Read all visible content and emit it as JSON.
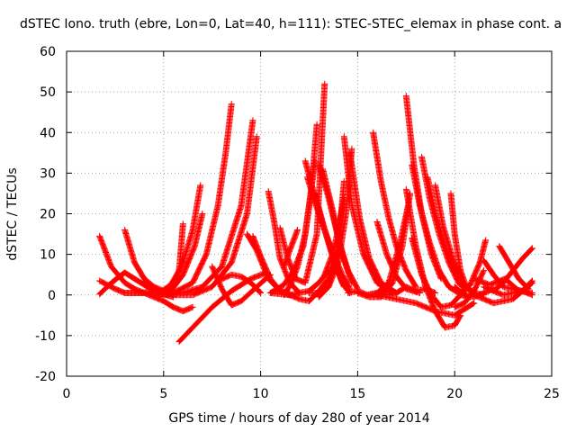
{
  "chart_data": {
    "type": "scatter",
    "title": "dSTEC Iono. truth (ebre, Lon=0, Lat=40, h=111): STEC-STEC_elemax in phase cont. a",
    "xlabel": "GPS time / hours of day 280 of year 2014",
    "ylabel": "dSTEC  / TECUs",
    "xlim": [
      0,
      25
    ],
    "ylim": [
      -20,
      60
    ],
    "xticks": [
      0,
      5,
      10,
      15,
      20,
      25
    ],
    "yticks": [
      -20,
      -10,
      0,
      10,
      20,
      30,
      40,
      50,
      60
    ],
    "grid": true,
    "marker": "+",
    "color": "#ff0000",
    "series": [
      {
        "x": [
          1.7,
          2.3,
          3.0,
          3.5,
          4.0,
          4.5
        ],
        "y": [
          14.5,
          7.0,
          3.0,
          1.5,
          0.5,
          0.0
        ]
      },
      {
        "x": [
          1.7,
          2.5,
          3.0,
          3.8,
          4.5,
          5.0,
          5.5
        ],
        "y": [
          3.5,
          1.5,
          0.5,
          0.5,
          0.8,
          0.2,
          -0.5
        ]
      },
      {
        "x": [
          1.7,
          2.2,
          2.7,
          3.0,
          3.5,
          4.0,
          4.5
        ],
        "y": [
          0.2,
          2.5,
          4.5,
          5.5,
          4.0,
          2.5,
          1.0
        ]
      },
      {
        "x": [
          3.0,
          3.5,
          4.0,
          4.5,
          5.0,
          5.3
        ],
        "y": [
          16.0,
          8.0,
          4.0,
          2.0,
          1.0,
          0.5
        ]
      },
      {
        "x": [
          3.0,
          4.0,
          5.0,
          5.5,
          6.0,
          6.5
        ],
        "y": [
          0.5,
          0.5,
          -1.5,
          -3.0,
          -4.0,
          -3.0
        ]
      },
      {
        "x": [
          4.0,
          4.8,
          5.2,
          5.8,
          6.0
        ],
        "y": [
          3.5,
          0.0,
          1.0,
          6.0,
          17.5
        ]
      },
      {
        "x": [
          4.8,
          5.5,
          6.0,
          6.5,
          6.9
        ],
        "y": [
          0.5,
          3.0,
          8.0,
          16.0,
          27.0
        ]
      },
      {
        "x": [
          5.3,
          6.0,
          6.6,
          7.0
        ],
        "y": [
          0.5,
          5.0,
          12.0,
          20.0
        ]
      },
      {
        "x": [
          5.8,
          6.5,
          7.5,
          8.5,
          9.5,
          10.3
        ],
        "y": [
          -11.5,
          -8.0,
          -3.0,
          1.0,
          4.0,
          5.5
        ]
      },
      {
        "x": [
          4.5,
          5.5,
          6.5,
          7.2,
          7.8,
          8.2,
          8.5
        ],
        "y": [
          0.0,
          0.5,
          3.0,
          10.0,
          22.0,
          35.0,
          47.0
        ]
      },
      {
        "x": [
          5.0,
          6.0,
          7.0,
          8.0,
          9.0,
          9.6
        ],
        "y": [
          0.0,
          0.5,
          2.0,
          7.0,
          22.0,
          43.0
        ]
      },
      {
        "x": [
          5.5,
          6.5,
          7.5,
          8.5,
          9.3,
          9.8
        ],
        "y": [
          0.0,
          0.0,
          2.0,
          8.0,
          20.0,
          39.0
        ]
      },
      {
        "x": [
          7.5,
          8.0,
          8.5,
          9.0,
          9.8,
          10.5
        ],
        "y": [
          7.0,
          1.5,
          -2.5,
          -1.5,
          2.0,
          5.0
        ]
      },
      {
        "x": [
          7.8,
          8.5,
          9.0,
          9.5,
          10.0
        ],
        "y": [
          3.5,
          5.0,
          4.5,
          3.0,
          0.5
        ]
      },
      {
        "x": [
          9.3,
          9.8,
          10.4,
          11.0,
          11.5
        ],
        "y": [
          15.0,
          11.0,
          4.0,
          1.0,
          0.5
        ]
      },
      {
        "x": [
          9.6,
          10.0,
          10.5,
          11.0
        ],
        "y": [
          14.5,
          9.5,
          4.0,
          1.0
        ]
      },
      {
        "x": [
          10.4,
          10.7,
          11.0,
          11.5,
          12.0
        ],
        "y": [
          25.5,
          18.0,
          9.0,
          3.0,
          0.5
        ]
      },
      {
        "x": [
          11.0,
          11.4,
          11.8,
          12.3,
          12.9,
          13.3
        ],
        "y": [
          16.5,
          9.0,
          4.0,
          3.0,
          15.0,
          52.0
        ]
      },
      {
        "x": [
          10.5,
          11.2,
          11.7,
          12.2,
          12.6,
          12.9
        ],
        "y": [
          0.5,
          2.5,
          6.0,
          12.0,
          25.0,
          42.0
        ]
      },
      {
        "x": [
          11.2,
          11.6,
          11.9,
          12.3,
          12.8
        ],
        "y": [
          0.0,
          3.0,
          7.0,
          15.0,
          33.0
        ]
      },
      {
        "x": [
          11.2,
          11.5,
          11.9
        ],
        "y": [
          7.0,
          11.0,
          16.0
        ]
      },
      {
        "x": [
          10.5,
          11.5,
          12.5,
          13.0,
          13.5
        ],
        "y": [
          0.5,
          0.0,
          1.0,
          3.0,
          6.0
        ]
      },
      {
        "x": [
          12.3,
          12.8,
          13.3,
          13.8,
          14.3
        ],
        "y": [
          33.0,
          24.0,
          16.0,
          8.0,
          2.0
        ]
      },
      {
        "x": [
          12.4,
          13.0,
          13.6,
          14.2,
          14.6
        ],
        "y": [
          29.0,
          20.0,
          12.0,
          5.0,
          1.5
        ]
      },
      {
        "x": [
          12.8,
          13.3,
          13.8,
          14.2,
          14.6
        ],
        "y": [
          25.0,
          16.0,
          8.5,
          3.0,
          0.5
        ]
      },
      {
        "x": [
          13.0,
          13.5,
          14.0,
          14.5,
          15.0
        ],
        "y": [
          32.0,
          24.0,
          14.0,
          6.0,
          1.5
        ]
      },
      {
        "x": [
          13.2,
          13.7,
          14.2,
          14.7
        ],
        "y": [
          31.0,
          21.0,
          10.0,
          3.0
        ]
      },
      {
        "x": [
          11.0,
          12.0,
          12.5,
          13.0,
          13.5,
          14.0
        ],
        "y": [
          1.0,
          -1.0,
          -1.5,
          1.0,
          4.0,
          10.0
        ]
      },
      {
        "x": [
          12.5,
          13.0,
          13.5,
          14.0,
          14.4,
          14.7
        ],
        "y": [
          0.5,
          0.5,
          2.0,
          8.0,
          20.0,
          36.0
        ]
      },
      {
        "x": [
          13.0,
          13.5,
          14.0,
          14.3
        ],
        "y": [
          -0.5,
          2.0,
          12.0,
          28.0
        ]
      },
      {
        "x": [
          13.3,
          13.7,
          14.0,
          14.3
        ],
        "y": [
          5.0,
          10.0,
          16.0,
          24.0
        ]
      },
      {
        "x": [
          14.3,
          14.7,
          15.3,
          16.0,
          16.8
        ],
        "y": [
          39.0,
          22.0,
          10.0,
          3.0,
          0.5
        ]
      },
      {
        "x": [
          14.6,
          15.1,
          15.6,
          16.2,
          17.0
        ],
        "y": [
          35.0,
          19.0,
          9.0,
          3.0,
          0.5
        ]
      },
      {
        "x": [
          14.5,
          15.0,
          15.5,
          16.0,
          16.5,
          17.0
        ],
        "y": [
          0.5,
          1.0,
          0.0,
          0.5,
          1.5,
          0.5
        ]
      },
      {
        "x": [
          15.8,
          16.2,
          16.6,
          17.0,
          17.5,
          18.0
        ],
        "y": [
          40.0,
          28.0,
          19.0,
          12.0,
          6.0,
          2.0
        ]
      },
      {
        "x": [
          16.0,
          16.5,
          17.0,
          17.5,
          18.2
        ],
        "y": [
          18.0,
          10.0,
          4.5,
          1.5,
          0.5
        ]
      },
      {
        "x": [
          15.0,
          15.6,
          16.2,
          16.8,
          17.3,
          17.7
        ],
        "y": [
          0.5,
          -0.5,
          -0.5,
          3.0,
          12.0,
          25.0
        ]
      },
      {
        "x": [
          15.5,
          16.0,
          16.6,
          17.2,
          17.6
        ],
        "y": [
          0.0,
          0.5,
          3.0,
          13.0,
          22.0
        ]
      },
      {
        "x": [
          17.5,
          17.9,
          18.3,
          18.8,
          19.3
        ],
        "y": [
          49.0,
          32.0,
          20.0,
          10.0,
          4.0
        ]
      },
      {
        "x": [
          17.8,
          18.2,
          18.7,
          19.2,
          19.7,
          20.2
        ],
        "y": [
          32.0,
          22.0,
          13.0,
          6.0,
          2.0,
          0.5
        ]
      },
      {
        "x": [
          18.3,
          18.7,
          19.2,
          19.7,
          20.2,
          20.6
        ],
        "y": [
          34.0,
          24.0,
          15.0,
          8.0,
          3.0,
          1.0
        ]
      },
      {
        "x": [
          18.6,
          19.0,
          19.5,
          20.0,
          20.5,
          21.0
        ],
        "y": [
          29.0,
          20.0,
          12.0,
          6.0,
          2.0,
          0.5
        ]
      },
      {
        "x": [
          19.0,
          19.4,
          19.9,
          20.4,
          21.0
        ],
        "y": [
          27.0,
          17.0,
          9.0,
          3.0,
          0.5
        ]
      },
      {
        "x": [
          17.5,
          18.0,
          18.5,
          19.0,
          19.5,
          20.0,
          20.3
        ],
        "y": [
          26.0,
          12.0,
          2.0,
          -4.0,
          -8.0,
          -7.5,
          -5.0
        ]
      },
      {
        "x": [
          17.8,
          18.3,
          18.8,
          19.3,
          19.8,
          20.3,
          20.8
        ],
        "y": [
          14.0,
          5.0,
          0.0,
          -3.0,
          -2.5,
          0.0,
          -0.5
        ]
      },
      {
        "x": [
          16.5,
          17.0,
          17.5,
          18.0,
          18.5,
          19.0
        ],
        "y": [
          0.0,
          0.5,
          2.0,
          1.0,
          1.5,
          0.5
        ]
      },
      {
        "x": [
          16.0,
          17.0,
          18.0,
          19.0,
          20.0,
          20.5,
          21.0
        ],
        "y": [
          0.0,
          -1.0,
          -2.0,
          -4.0,
          -5.0,
          -3.5,
          -2.0
        ]
      },
      {
        "x": [
          19.8,
          20.0,
          20.3,
          20.6,
          21.0,
          21.5
        ],
        "y": [
          25.0,
          15.0,
          6.0,
          2.0,
          0.5,
          0.0
        ]
      },
      {
        "x": [
          20.0,
          20.5,
          21.0,
          21.5,
          22.0
        ],
        "y": [
          2.0,
          0.0,
          -0.5,
          0.5,
          1.5
        ]
      },
      {
        "x": [
          20.3,
          20.8,
          21.3,
          21.6
        ],
        "y": [
          0.5,
          2.5,
          8.0,
          13.5
        ]
      },
      {
        "x": [
          20.0,
          20.5,
          21.0,
          21.5
        ],
        "y": [
          -3.0,
          -2.0,
          1.0,
          6.0
        ]
      },
      {
        "x": [
          21.5,
          22.0,
          22.5,
          23.0,
          23.5,
          24.0
        ],
        "y": [
          8.5,
          5.0,
          2.0,
          1.5,
          1.0,
          0.0
        ]
      },
      {
        "x": [
          22.3,
          22.8,
          23.3,
          23.8
        ],
        "y": [
          12.0,
          8.0,
          4.0,
          1.5
        ]
      },
      {
        "x": [
          22.0,
          22.5,
          23.0,
          23.5,
          24.0
        ],
        "y": [
          1.0,
          3.0,
          6.0,
          9.0,
          11.5
        ]
      },
      {
        "x": [
          21.0,
          22.0,
          23.0,
          23.5,
          24.0
        ],
        "y": [
          0.0,
          -2.0,
          -1.0,
          1.0,
          3.5
        ]
      },
      {
        "x": [
          21.5,
          22.5,
          23.5,
          24.0
        ],
        "y": [
          2.0,
          0.0,
          1.0,
          3.0
        ]
      },
      {
        "x": [
          21.0,
          21.8,
          22.6,
          23.3,
          24.0
        ],
        "y": [
          4.0,
          2.5,
          4.0,
          1.0,
          0.5
        ]
      }
    ]
  }
}
